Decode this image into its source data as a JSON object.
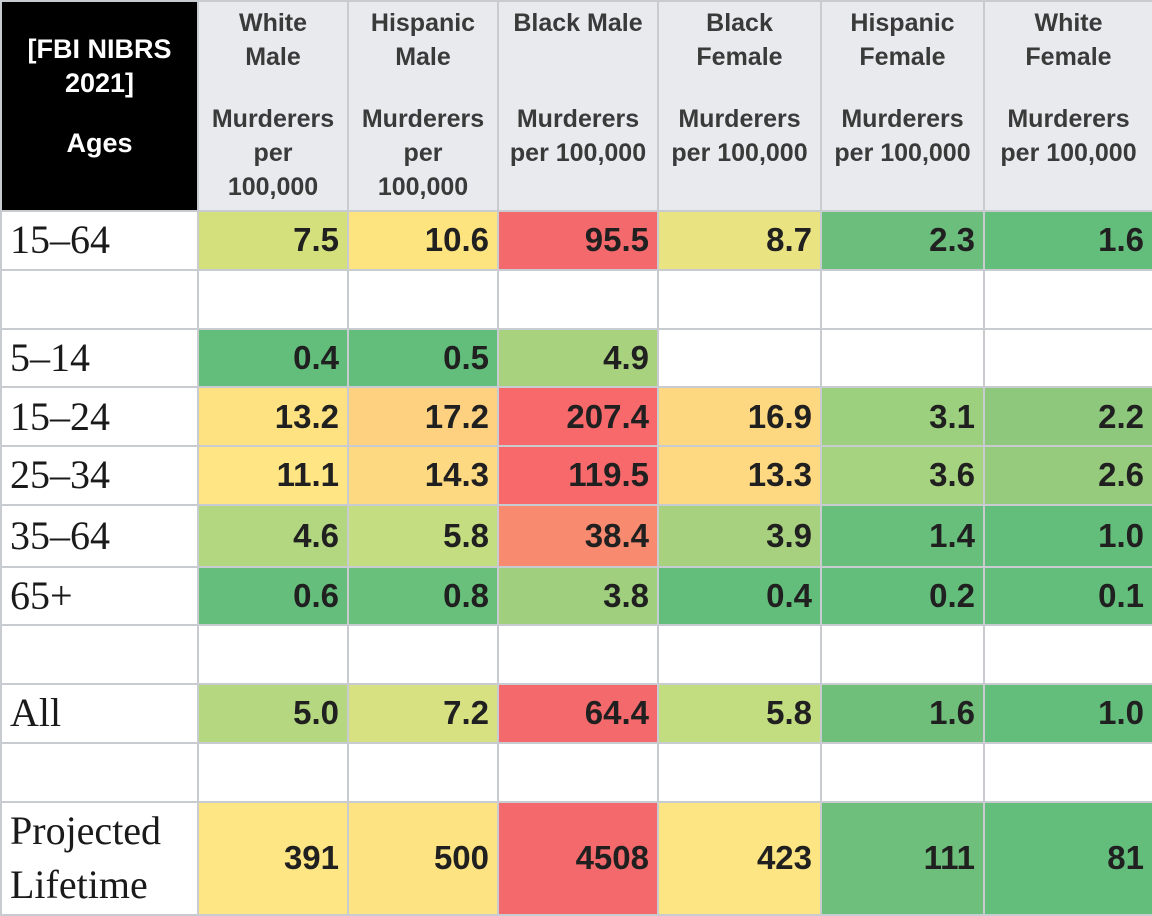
{
  "chart_data": {
    "type": "table",
    "corner": {
      "source": "[FBI NIBRS 2021]",
      "ages_label": "Ages"
    },
    "columns": [
      {
        "group": "White\nMale",
        "unit": "Murderers\nper\n100,000"
      },
      {
        "group": "Hispanic\nMale",
        "unit": "Murderers\nper\n100,000"
      },
      {
        "group": "Black Male",
        "unit": "Murderers\nper 100,000"
      },
      {
        "group": "Black\nFemale",
        "unit": "Murderers\nper 100,000"
      },
      {
        "group": "Hispanic\nFemale",
        "unit": "Murderers\nper 100,000"
      },
      {
        "group": "White\nFemale",
        "unit": "Murderers\nper 100,000"
      }
    ],
    "rows": [
      {
        "label": "15–64",
        "values": [
          "7.5",
          "10.6",
          "95.5",
          "8.7",
          "2.3",
          "1.6"
        ],
        "colors": [
          "#d3e07b",
          "#fde47f",
          "#f4696b",
          "#eae382",
          "#6bbe7b",
          "#63be7b"
        ]
      },
      {
        "label": "",
        "values": [
          "",
          "",
          "",
          "",
          "",
          ""
        ],
        "colors": [
          "#ffffff",
          "#ffffff",
          "#ffffff",
          "#ffffff",
          "#ffffff",
          "#ffffff"
        ]
      },
      {
        "label": "5–14",
        "values": [
          "0.4",
          "0.5",
          "4.9",
          "",
          "",
          ""
        ],
        "colors": [
          "#63be7b",
          "#63be7b",
          "#a9d27f",
          "#ffffff",
          "#ffffff",
          "#ffffff"
        ]
      },
      {
        "label": "15–24",
        "values": [
          "13.2",
          "17.2",
          "207.4",
          "16.9",
          "3.1",
          "2.2"
        ],
        "colors": [
          "#fee282",
          "#fdd17f",
          "#f8696b",
          "#fed880",
          "#9dd07e",
          "#8ec87d"
        ]
      },
      {
        "label": "25–34",
        "values": [
          "11.1",
          "14.3",
          "119.5",
          "13.3",
          "3.6",
          "2.6"
        ],
        "colors": [
          "#ffe584",
          "#fdd981",
          "#f8696b",
          "#fed981",
          "#a6d37f",
          "#96cb7d"
        ]
      },
      {
        "label": "35–64",
        "values": [
          "4.6",
          "5.8",
          "38.4",
          "3.9",
          "1.4",
          "1.0"
        ],
        "colors": [
          "#b3d780",
          "#c4dd81",
          "#f88a6f",
          "#a8d17f",
          "#68bf7b",
          "#63be7b"
        ]
      },
      {
        "label": "65+",
        "values": [
          "0.6",
          "0.8",
          "3.8",
          "0.4",
          "0.2",
          "0.1"
        ],
        "colors": [
          "#65be7b",
          "#69c07b",
          "#a0cf7e",
          "#63be7b",
          "#63be7b",
          "#63be7b"
        ]
      },
      {
        "label": "",
        "values": [
          "",
          "",
          "",
          "",
          "",
          ""
        ],
        "colors": [
          "#ffffff",
          "#ffffff",
          "#ffffff",
          "#ffffff",
          "#ffffff",
          "#ffffff"
        ]
      },
      {
        "label": "All",
        "values": [
          "5.0",
          "7.2",
          "64.4",
          "5.8",
          "1.6",
          "1.0"
        ],
        "colors": [
          "#b5d77f",
          "#d7e181",
          "#f4696b",
          "#c2dc80",
          "#6fbf7b",
          "#63be7b"
        ]
      },
      {
        "label": "",
        "values": [
          "",
          "",
          "",
          "",
          "",
          ""
        ],
        "colors": [
          "#ffffff",
          "#ffffff",
          "#ffffff",
          "#ffffff",
          "#ffffff",
          "#ffffff"
        ]
      },
      {
        "label": "Projected\nLifetime",
        "values": [
          "391",
          "500",
          "4508",
          "423",
          "111",
          "81"
        ],
        "colors": [
          "#fee684",
          "#fde381",
          "#f4696b",
          "#fde583",
          "#6ebf7b",
          "#63be7b"
        ]
      }
    ]
  }
}
